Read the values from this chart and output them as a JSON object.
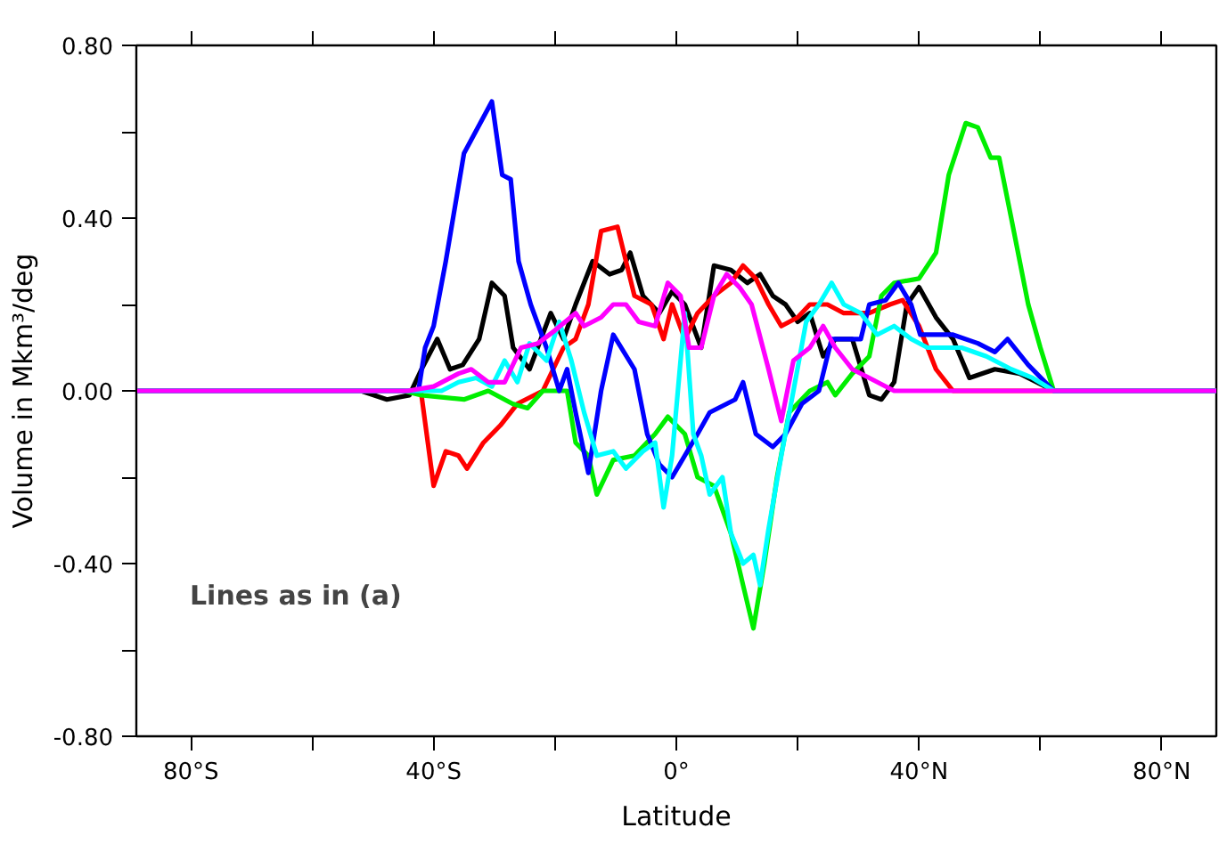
{
  "chart_data": {
    "type": "line",
    "xlabel": "Latitude",
    "ylabel": "Volume in Mkm³/deg",
    "xlim": [
      -89,
      89
    ],
    "ylim": [
      -0.8,
      0.8
    ],
    "xticks": [
      {
        "value": -80,
        "label": "80°S"
      },
      {
        "value": -60,
        "label": null
      },
      {
        "value": -40,
        "label": "40°S"
      },
      {
        "value": -20,
        "label": null
      },
      {
        "value": 0,
        "label": "0°"
      },
      {
        "value": 20,
        "label": null
      },
      {
        "value": 40,
        "label": "40°N"
      },
      {
        "value": 60,
        "label": null
      },
      {
        "value": 80,
        "label": "80°N"
      }
    ],
    "yticks": [
      {
        "value": -0.8,
        "label": "-0.80"
      },
      {
        "value": -0.6,
        "label": null
      },
      {
        "value": -0.4,
        "label": "-0.40"
      },
      {
        "value": -0.2,
        "label": null
      },
      {
        "value": 0,
        "label": "0.00"
      },
      {
        "value": 0.2,
        "label": null
      },
      {
        "value": 0.4,
        "label": "0.40"
      },
      {
        "value": 0.6,
        "label": null
      },
      {
        "value": 0.8,
        "label": "0.80"
      }
    ],
    "grid": false,
    "marker": "none",
    "line_style": "solid",
    "annotations": [
      "Lines as in (a)"
    ],
    "series": [
      {
        "color": "#000000",
        "x": [
          -89,
          -52,
          -47.7,
          -44,
          -42,
          -39.4,
          -37.3,
          -35.2,
          -32.5,
          -30.4,
          -28.3,
          -26.9,
          -24.2,
          -20.7,
          -18.6,
          -16.6,
          -13.8,
          -11,
          -9,
          -7.6,
          -5.5,
          -2.8,
          -0.7,
          1.4,
          4.1,
          6.2,
          9,
          11.7,
          13.8,
          15.9,
          18,
          20,
          22,
          24.2,
          26.2,
          29,
          31.8,
          33.8,
          35.9,
          38,
          40,
          42.8,
          45.6,
          48.3,
          52.5,
          56.6,
          62.2,
          89
        ],
        "values": [
          0,
          0,
          -0.02,
          -0.01,
          0.05,
          0.12,
          0.05,
          0.06,
          0.12,
          0.25,
          0.22,
          0.1,
          0.05,
          0.18,
          0.12,
          0.2,
          0.3,
          0.27,
          0.28,
          0.32,
          0.22,
          0.18,
          0.23,
          0.2,
          0.1,
          0.29,
          0.28,
          0.25,
          0.27,
          0.22,
          0.2,
          0.16,
          0.18,
          0.08,
          0.12,
          0.12,
          -0.01,
          -0.02,
          0.02,
          0.2,
          0.24,
          0.17,
          0.12,
          0.03,
          0.05,
          0.04,
          0,
          0
        ]
      },
      {
        "color": "#ff0000",
        "x": [
          -89,
          -42.1,
          -40,
          -38,
          -35.9,
          -34.5,
          -31.8,
          -29,
          -26.2,
          -22,
          -18.6,
          -16.6,
          -14.5,
          -12.4,
          -9.7,
          -8.3,
          -6.9,
          -4.1,
          -2.1,
          -0.7,
          1.4,
          3.5,
          6.2,
          9,
          11,
          13.1,
          15.2,
          17.3,
          20,
          22,
          24.9,
          27.6,
          31.8,
          35.2,
          37.3,
          40,
          42.8,
          45.6,
          89
        ],
        "values": [
          0,
          0,
          -0.22,
          -0.14,
          -0.15,
          -0.18,
          -0.12,
          -0.08,
          -0.03,
          0,
          0.1,
          0.12,
          0.2,
          0.37,
          0.38,
          0.3,
          0.22,
          0.2,
          0.12,
          0.2,
          0.12,
          0.18,
          0.22,
          0.25,
          0.29,
          0.26,
          0.2,
          0.15,
          0.17,
          0.2,
          0.2,
          0.18,
          0.18,
          0.2,
          0.21,
          0.15,
          0.05,
          0,
          0
        ]
      },
      {
        "color": "#00ee00",
        "x": [
          -89,
          -45,
          -42,
          -35,
          -31,
          -27,
          -24.5,
          -22,
          -18,
          -16.6,
          -14.5,
          -13.1,
          -10.4,
          -6.9,
          -3.5,
          -1.4,
          1.4,
          3.5,
          6.2,
          9,
          11,
          12.7,
          14.5,
          16.6,
          18.6,
          22,
          24.9,
          26.2,
          29,
          31.8,
          33.8,
          35.9,
          40,
          42.8,
          44.9,
          47.7,
          49.7,
          51.8,
          53.2,
          55.2,
          58,
          60,
          62.2,
          89
        ],
        "values": [
          0,
          0,
          -0.01,
          -0.02,
          0,
          -0.03,
          -0.04,
          0,
          0,
          -0.12,
          -0.15,
          -0.24,
          -0.16,
          -0.15,
          -0.1,
          -0.06,
          -0.1,
          -0.2,
          -0.22,
          -0.33,
          -0.45,
          -0.55,
          -0.4,
          -0.2,
          -0.05,
          0,
          0.02,
          -0.01,
          0.04,
          0.08,
          0.22,
          0.25,
          0.26,
          0.32,
          0.5,
          0.62,
          0.61,
          0.54,
          0.54,
          0.4,
          0.2,
          0.1,
          0,
          0
        ]
      },
      {
        "color": "#0000ff",
        "x": [
          -89,
          -42.5,
          -41.4,
          -40,
          -38,
          -35,
          -30.4,
          -28.7,
          -27.3,
          -26,
          -24,
          -21.4,
          -19.3,
          -18,
          -16.6,
          -14.5,
          -12.4,
          -10.4,
          -6.9,
          -4.8,
          -2.8,
          -0.7,
          1.4,
          3.5,
          5.5,
          9.7,
          11,
          13.1,
          15.9,
          18,
          20.7,
          23.5,
          25.6,
          30.4,
          31.8,
          34.5,
          36.6,
          38.7,
          40.2,
          45.6,
          49.7,
          52.5,
          54.6,
          58,
          62.2,
          89
        ],
        "values": [
          0,
          0,
          0.1,
          0.15,
          0.3,
          0.55,
          0.67,
          0.5,
          0.49,
          0.3,
          0.2,
          0.1,
          0,
          0.05,
          -0.05,
          -0.19,
          0,
          0.13,
          0.05,
          -0.1,
          -0.17,
          -0.2,
          -0.15,
          -0.1,
          -0.05,
          -0.02,
          0.02,
          -0.1,
          -0.13,
          -0.1,
          -0.03,
          0,
          0.12,
          0.12,
          0.2,
          0.21,
          0.25,
          0.2,
          0.13,
          0.13,
          0.11,
          0.09,
          0.12,
          0.06,
          0,
          0
        ]
      },
      {
        "color": "#00ffff",
        "x": [
          -89,
          -40,
          -38.7,
          -35.9,
          -33,
          -30.4,
          -28.3,
          -26.2,
          -24.2,
          -21.4,
          -19.3,
          -17.3,
          -15.2,
          -13.1,
          -10.4,
          -8.3,
          -5.5,
          -3.5,
          -2.1,
          -0.7,
          1.4,
          2.8,
          4.1,
          5.5,
          7.6,
          9,
          11,
          12.7,
          13.8,
          15.2,
          17.3,
          19.3,
          21.4,
          23.5,
          25.6,
          27.6,
          30.4,
          33.1,
          35.9,
          38.7,
          41.4,
          44.2,
          47,
          51.1,
          55.2,
          58.7,
          62.2,
          89
        ],
        "values": [
          0,
          0,
          0,
          0.02,
          0.03,
          0.01,
          0.07,
          0.02,
          0.11,
          0.07,
          0.16,
          0.07,
          -0.05,
          -0.15,
          -0.14,
          -0.18,
          -0.14,
          -0.12,
          -0.27,
          -0.15,
          0.18,
          -0.1,
          -0.15,
          -0.24,
          -0.2,
          -0.33,
          -0.4,
          -0.38,
          -0.45,
          -0.32,
          -0.15,
          0,
          0.16,
          0.2,
          0.25,
          0.2,
          0.18,
          0.13,
          0.15,
          0.12,
          0.1,
          0.1,
          0.1,
          0.08,
          0.05,
          0.03,
          0,
          0
        ]
      },
      {
        "color": "#ff00ff",
        "x": [
          -89,
          -44.2,
          -40,
          -35.9,
          -33.8,
          -31,
          -28.3,
          -25.6,
          -22.8,
          -20,
          -16.6,
          -15.2,
          -12.4,
          -10.4,
          -8.3,
          -6.2,
          -3.5,
          -1.4,
          0.7,
          2.1,
          4.1,
          6.2,
          8.3,
          10.4,
          12.4,
          15.2,
          17.3,
          19.3,
          22,
          24.2,
          26.2,
          29,
          31.8,
          35.9,
          89
        ],
        "values": [
          0,
          0,
          0.01,
          0.04,
          0.05,
          0.02,
          0.02,
          0.1,
          0.11,
          0.14,
          0.18,
          0.15,
          0.17,
          0.2,
          0.2,
          0.16,
          0.15,
          0.25,
          0.22,
          0.1,
          0.1,
          0.22,
          0.27,
          0.24,
          0.2,
          0.05,
          -0.07,
          0.07,
          0.1,
          0.15,
          0.1,
          0.05,
          0.03,
          0,
          0
        ]
      }
    ]
  }
}
